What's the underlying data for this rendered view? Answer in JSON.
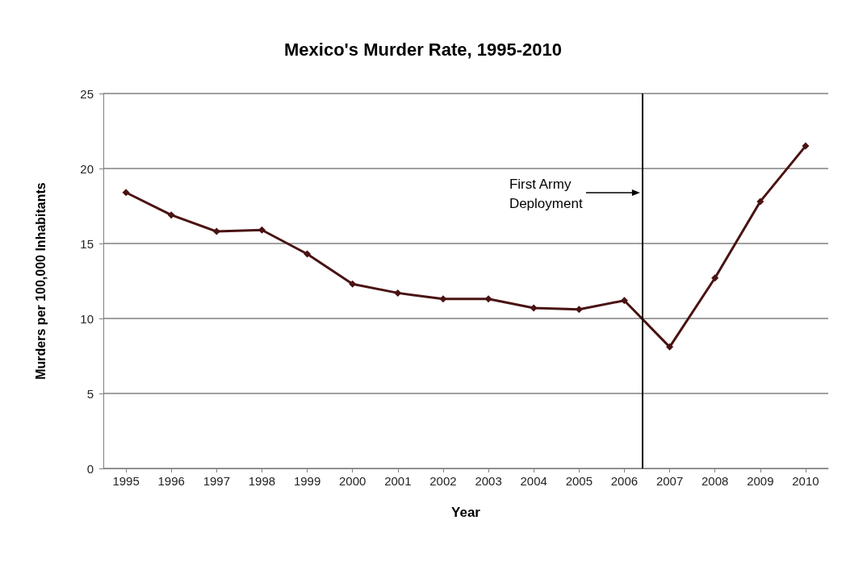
{
  "chart_data": {
    "type": "line",
    "title": "Mexico's Murder Rate, 1995-2010",
    "xlabel": "Year",
    "ylabel": "Murders per 100,000 Inhabitants",
    "x": [
      1995,
      1996,
      1997,
      1998,
      1999,
      2000,
      2001,
      2002,
      2003,
      2004,
      2005,
      2006,
      2007,
      2008,
      2009,
      2010
    ],
    "series": [
      {
        "color": "#4a1212",
        "values": [
          18.4,
          16.9,
          15.8,
          15.9,
          14.3,
          12.3,
          11.7,
          11.3,
          11.3,
          10.7,
          10.6,
          11.2,
          8.1,
          12.7,
          17.8,
          21.5
        ]
      }
    ],
    "xlim": [
      1994.5,
      2010.5
    ],
    "xticks": [
      1995,
      1996,
      1997,
      1998,
      1999,
      2000,
      2001,
      2002,
      2003,
      2004,
      2005,
      2006,
      2007,
      2008,
      2009,
      2010
    ],
    "ylim": [
      0,
      25
    ],
    "yticks": [
      0,
      5,
      10,
      15,
      20,
      25
    ],
    "ref_lines": [
      {
        "axis": "x",
        "value": 2006.4,
        "label": "First Army Deployment",
        "color": "#000000"
      }
    ],
    "grid": "y",
    "marker": "diamond",
    "line_style": "solid"
  }
}
